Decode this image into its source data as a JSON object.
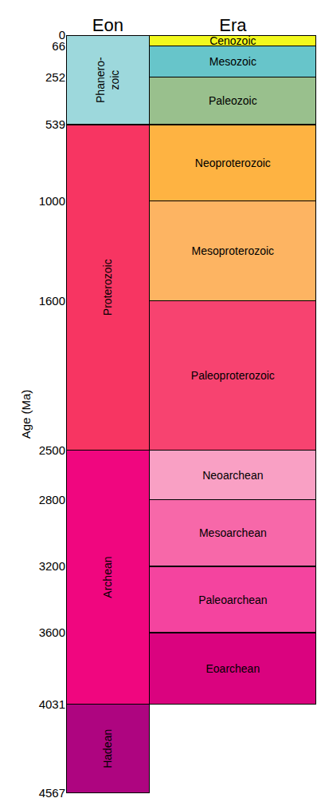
{
  "chart_data": {
    "type": "bar",
    "stacked": true,
    "orientation": "vertical",
    "y_label": "Age (Ma)",
    "categories": [
      "Eon",
      "Era"
    ],
    "ylim": [
      0,
      4567
    ],
    "yticks": [
      0,
      66,
      252,
      539,
      1000,
      1600,
      2500,
      2800,
      3200,
      3600,
      4031,
      4567
    ],
    "grid": false,
    "data_labels": false,
    "series": [
      {
        "name": "Phanero-\nzoic",
        "color": "#9dd8dc",
        "values": [
          539,
          null
        ]
      },
      {
        "name": "Proterozoic",
        "color": "#f73562",
        "values": [
          1961,
          null
        ]
      },
      {
        "name": "Archean",
        "color": "#f0067f",
        "values": [
          1531,
          null
        ]
      },
      {
        "name": "Hadean",
        "color": "#ae0580",
        "values": [
          536,
          null
        ]
      },
      {
        "name": "Cenozoic",
        "color": "#f2f91d",
        "values": [
          null,
          66
        ]
      },
      {
        "name": "Mesozoic",
        "color": "#67c5ca",
        "values": [
          null,
          186
        ]
      },
      {
        "name": "Paleozoic",
        "color": "#99c08d",
        "values": [
          null,
          287
        ]
      },
      {
        "name": "Neoproterozoic",
        "color": "#feb342",
        "values": [
          null,
          461
        ]
      },
      {
        "name": "Mesoproterozoic",
        "color": "#fdb462",
        "values": [
          null,
          600
        ]
      },
      {
        "name": "Paleoproterozoic",
        "color": "#f74370",
        "values": [
          null,
          900
        ]
      },
      {
        "name": "Neoarchean",
        "color": "#f9a0c4",
        "values": [
          null,
          300
        ]
      },
      {
        "name": "Mesoarchean",
        "color": "#f768a9",
        "values": [
          null,
          400
        ]
      },
      {
        "name": "Paleoarchean",
        "color": "#f4449f",
        "values": [
          null,
          400
        ]
      },
      {
        "name": "Eoarchean",
        "color": "#da037f",
        "values": [
          null,
          431
        ]
      }
    ]
  }
}
